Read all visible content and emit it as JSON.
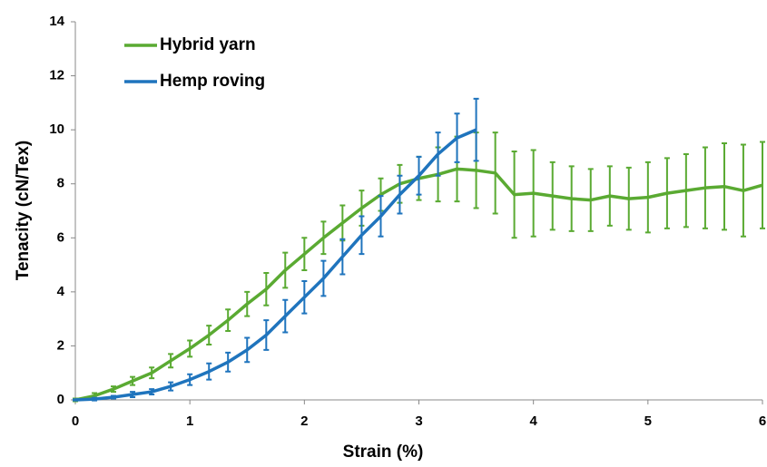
{
  "chart_data": {
    "type": "line",
    "xlabel": "Strain (%)",
    "ylabel": "Tenacity (cN/Tex)",
    "xlim": [
      0,
      6
    ],
    "ylim": [
      0,
      14
    ],
    "xticks": [
      0,
      1,
      2,
      3,
      4,
      5,
      6
    ],
    "yticks": [
      0,
      2,
      4,
      6,
      8,
      10,
      12,
      14
    ],
    "grid": false,
    "legend": "upper left",
    "series": [
      {
        "name": "Hybrid yarn",
        "color": "#5aaa32",
        "x": [
          0,
          0.167,
          0.333,
          0.5,
          0.667,
          0.833,
          1,
          1.167,
          1.333,
          1.5,
          1.667,
          1.833,
          2,
          2.167,
          2.333,
          2.5,
          2.667,
          2.833,
          3,
          3.167,
          3.333,
          3.5,
          3.667,
          3.833,
          4,
          4.167,
          4.333,
          4.5,
          4.667,
          4.833,
          5,
          5.167,
          5.333,
          5.5,
          5.667,
          5.833,
          6
        ],
        "values": [
          0,
          0.15,
          0.4,
          0.7,
          1.0,
          1.45,
          1.9,
          2.4,
          2.95,
          3.55,
          4.1,
          4.8,
          5.4,
          6.0,
          6.55,
          7.1,
          7.6,
          8.0,
          8.2,
          8.35,
          8.55,
          8.5,
          8.4,
          7.6,
          7.65,
          7.55,
          7.45,
          7.4,
          7.55,
          7.45,
          7.5,
          7.65,
          7.75,
          7.85,
          7.9,
          7.75,
          7.95
        ],
        "errors": [
          0.05,
          0.1,
          0.1,
          0.15,
          0.2,
          0.25,
          0.3,
          0.35,
          0.4,
          0.45,
          0.6,
          0.65,
          0.6,
          0.6,
          0.65,
          0.65,
          0.6,
          0.7,
          0.8,
          1.0,
          1.2,
          1.4,
          1.5,
          1.6,
          1.6,
          1.25,
          1.2,
          1.15,
          1.1,
          1.15,
          1.3,
          1.3,
          1.35,
          1.5,
          1.6,
          1.7,
          1.6
        ]
      },
      {
        "name": "Hemp roving",
        "color": "#1f74bd",
        "x": [
          0,
          0.167,
          0.333,
          0.5,
          0.667,
          0.833,
          1,
          1.167,
          1.333,
          1.5,
          1.667,
          1.833,
          2,
          2.167,
          2.333,
          2.5,
          2.667,
          2.833,
          3,
          3.167,
          3.333,
          3.5
        ],
        "values": [
          0,
          0.03,
          0.1,
          0.2,
          0.3,
          0.5,
          0.75,
          1.05,
          1.4,
          1.85,
          2.4,
          3.1,
          3.8,
          4.5,
          5.3,
          6.1,
          6.8,
          7.6,
          8.3,
          9.1,
          9.7,
          10.0
        ],
        "errors": [
          0.02,
          0.05,
          0.05,
          0.1,
          0.1,
          0.15,
          0.2,
          0.3,
          0.35,
          0.45,
          0.55,
          0.6,
          0.6,
          0.65,
          0.65,
          0.7,
          0.75,
          0.7,
          0.7,
          0.8,
          0.9,
          1.15
        ]
      }
    ]
  }
}
